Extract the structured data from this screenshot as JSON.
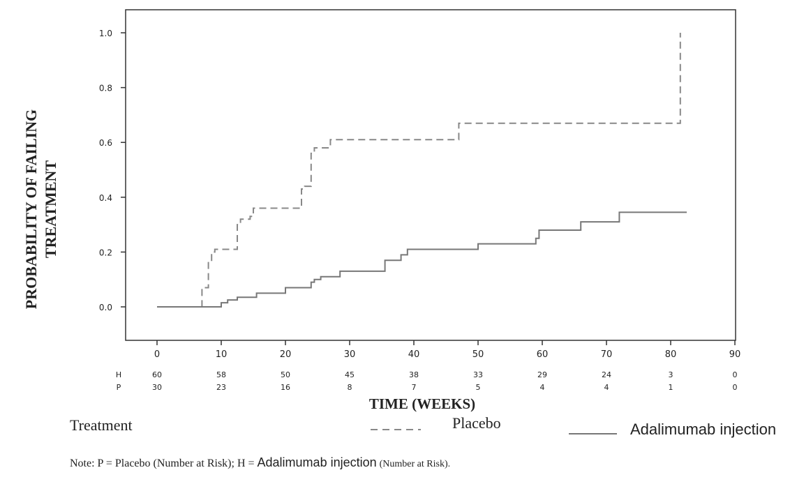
{
  "chart_data": {
    "type": "line",
    "step": true,
    "ylabel_lines": [
      "PROBABILITY OF FAILING",
      "TREATMENT"
    ],
    "xlabel": "TIME (WEEKS)",
    "xlim": [
      -5,
      90
    ],
    "ylim": [
      -0.12,
      1.02
    ],
    "xticks": [
      0,
      10,
      20,
      30,
      40,
      50,
      60,
      70,
      80,
      90
    ],
    "yticks": [
      0.0,
      0.2,
      0.4,
      0.6,
      0.8,
      1.0
    ],
    "ytick_labels": [
      "0.0",
      "0.2",
      "0.4",
      "0.6",
      "0.8",
      "1.0"
    ],
    "grid": false,
    "series": [
      {
        "name": "Placebo",
        "style": "dashed",
        "color": "#888888",
        "x": [
          0,
          7,
          7.5,
          8,
          8.5,
          9,
          12,
          12.5,
          13,
          14.5,
          15,
          22.5,
          23,
          24,
          24.5,
          27,
          47,
          81,
          81.5
        ],
        "y": [
          0.0,
          0.07,
          0.07,
          0.17,
          0.2,
          0.21,
          0.21,
          0.3,
          0.32,
          0.33,
          0.36,
          0.43,
          0.44,
          0.56,
          0.58,
          0.61,
          0.67,
          0.67,
          1.0
        ]
      },
      {
        "name": "Adalimumab injection",
        "style": "solid",
        "color": "#777777",
        "x": [
          0,
          10,
          11,
          12.5,
          15.5,
          20,
          24,
          24.5,
          25.5,
          28.5,
          35.5,
          38,
          39,
          50,
          59,
          59.5,
          66,
          72,
          82.5
        ],
        "y": [
          0.0,
          0.015,
          0.025,
          0.035,
          0.05,
          0.07,
          0.09,
          0.1,
          0.11,
          0.13,
          0.17,
          0.19,
          0.21,
          0.23,
          0.25,
          0.28,
          0.31,
          0.345,
          0.345
        ]
      }
    ],
    "risk_table": {
      "rows": [
        {
          "label": "H",
          "values": [
            "60",
            "58",
            "50",
            "45",
            "38",
            "33",
            "29",
            "24",
            "3",
            "0"
          ]
        },
        {
          "label": "P",
          "values": [
            "30",
            "23",
            "16",
            "8",
            "7",
            "5",
            "4",
            "4",
            "1",
            "0"
          ]
        }
      ]
    }
  },
  "legend": {
    "title": "Treatment",
    "placebo_label": "Placebo",
    "adalimumab_label": "Adalimumab injection"
  },
  "note": {
    "part1": "Note: P = Placebo (Number at Risk); H = ",
    "part2": "Adalimumab injection",
    "part3": " (Number at Risk)."
  }
}
